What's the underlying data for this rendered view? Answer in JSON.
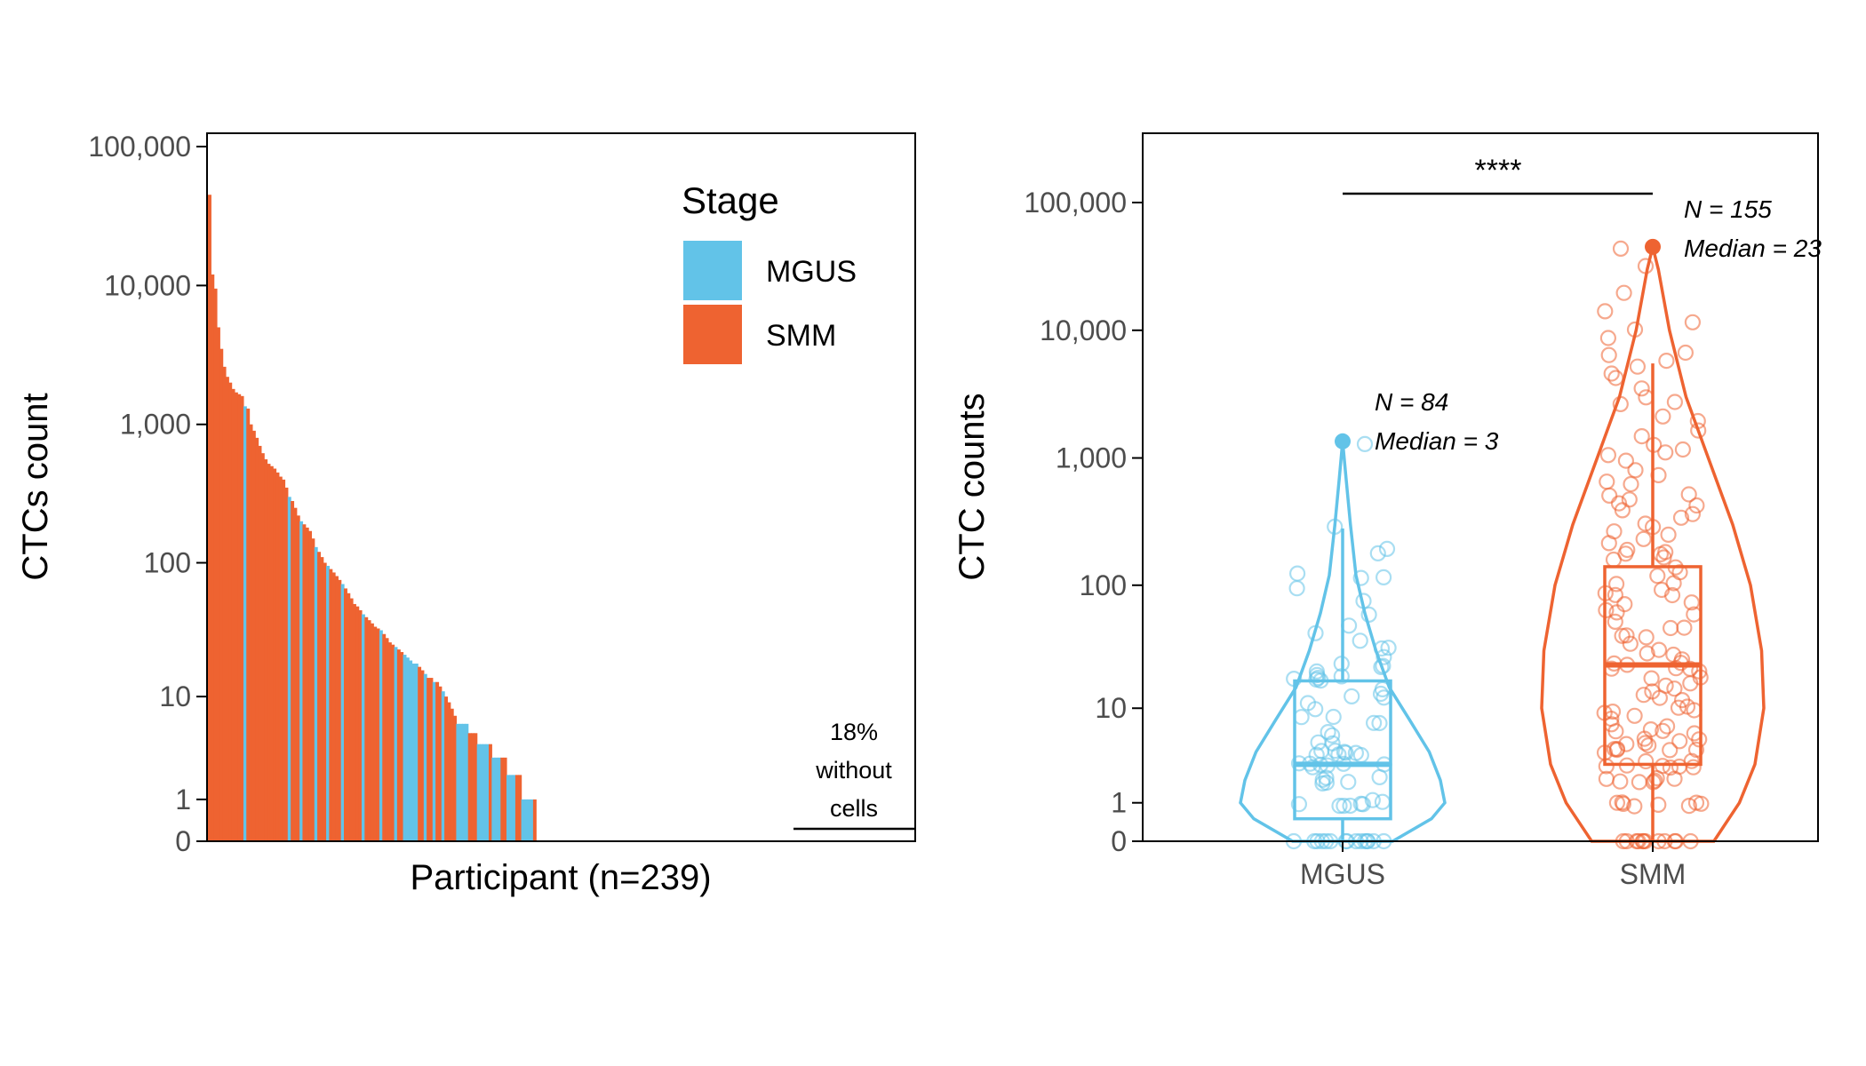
{
  "colors": {
    "mgus": "#62c3e8",
    "smm": "#ee6331",
    "axis": "#000000",
    "tick_text": "#4d4d4d"
  },
  "chart_data": [
    {
      "type": "bar",
      "subtype": "ranked-waterfall",
      "xlabel": "Participant (n=239)",
      "ylabel": "CTCs count",
      "y_scale": "log(y+1)",
      "yticks": [
        0,
        1,
        10,
        100,
        1000,
        10000,
        100000
      ],
      "ytick_labels": [
        "0",
        "1",
        "10",
        "100",
        "1,000",
        "10,000",
        "100,000"
      ],
      "ylim": [
        0,
        100000
      ],
      "n_participants": 239,
      "legend": {
        "title": "Stage",
        "position": "top-right",
        "entries": [
          "MGUS",
          "SMM"
        ]
      },
      "annotation": {
        "lines": [
          "18%",
          "without",
          "cells"
        ]
      },
      "bars": [
        {
          "stage": "SMM",
          "value": 45000
        },
        {
          "stage": "SMM",
          "value": 12000
        },
        {
          "stage": "SMM",
          "value": 9500
        },
        {
          "stage": "SMM",
          "value": 5000
        },
        {
          "stage": "SMM",
          "value": 3500
        },
        {
          "stage": "SMM",
          "value": 2600
        },
        {
          "stage": "SMM",
          "value": 2200
        },
        {
          "stage": "SMM",
          "value": 2000
        },
        {
          "stage": "SMM",
          "value": 1800
        },
        {
          "stage": "SMM",
          "value": 1700
        },
        {
          "stage": "SMM",
          "value": 1650
        },
        {
          "stage": "SMM",
          "value": 1600
        },
        {
          "stage": "MGUS",
          "value": 1350
        },
        {
          "stage": "SMM",
          "value": 1300
        },
        {
          "stage": "SMM",
          "value": 1000
        },
        {
          "stage": "SMM",
          "value": 900
        },
        {
          "stage": "SMM",
          "value": 800
        },
        {
          "stage": "SMM",
          "value": 700
        },
        {
          "stage": "SMM",
          "value": 620
        },
        {
          "stage": "SMM",
          "value": 560
        },
        {
          "stage": "SMM",
          "value": 520
        },
        {
          "stage": "SMM",
          "value": 500
        },
        {
          "stage": "SMM",
          "value": 480
        },
        {
          "stage": "SMM",
          "value": 450
        },
        {
          "stage": "SMM",
          "value": 420
        },
        {
          "stage": "SMM",
          "value": 400
        },
        {
          "stage": "SMM",
          "value": 350
        },
        {
          "stage": "MGUS",
          "value": 300
        },
        {
          "stage": "SMM",
          "value": 280
        },
        {
          "stage": "SMM",
          "value": 250
        },
        {
          "stage": "SMM",
          "value": 220
        },
        {
          "stage": "MGUS",
          "value": 200
        },
        {
          "stage": "SMM",
          "value": 190
        },
        {
          "stage": "SMM",
          "value": 180
        },
        {
          "stage": "SMM",
          "value": 170
        },
        {
          "stage": "SMM",
          "value": 150
        },
        {
          "stage": "MGUS",
          "value": 130
        },
        {
          "stage": "SMM",
          "value": 120
        },
        {
          "stage": "SMM",
          "value": 110
        },
        {
          "stage": "SMM",
          "value": 100
        },
        {
          "stage": "MGUS",
          "value": 95
        },
        {
          "stage": "SMM",
          "value": 90
        },
        {
          "stage": "SMM",
          "value": 85
        },
        {
          "stage": "SMM",
          "value": 80
        },
        {
          "stage": "SMM",
          "value": 75
        },
        {
          "stage": "MGUS",
          "value": 70
        },
        {
          "stage": "SMM",
          "value": 65
        },
        {
          "stage": "SMM",
          "value": 60
        },
        {
          "stage": "SMM",
          "value": 55
        },
        {
          "stage": "SMM",
          "value": 50
        },
        {
          "stage": "SMM",
          "value": 48
        },
        {
          "stage": "SMM",
          "value": 45
        },
        {
          "stage": "MGUS",
          "value": 42
        },
        {
          "stage": "SMM",
          "value": 40
        },
        {
          "stage": "SMM",
          "value": 38
        },
        {
          "stage": "SMM",
          "value": 36
        },
        {
          "stage": "SMM",
          "value": 34
        },
        {
          "stage": "SMM",
          "value": 33
        },
        {
          "stage": "MGUS",
          "value": 32
        },
        {
          "stage": "SMM",
          "value": 30
        },
        {
          "stage": "SMM",
          "value": 28
        },
        {
          "stage": "SMM",
          "value": 26
        },
        {
          "stage": "SMM",
          "value": 25
        },
        {
          "stage": "MGUS",
          "value": 24
        },
        {
          "stage": "SMM",
          "value": 23
        },
        {
          "stage": "SMM",
          "value": 22
        },
        {
          "stage": "MGUS",
          "value": 21
        },
        {
          "stage": "MGUS",
          "value": 20
        },
        {
          "stage": "MGUS",
          "value": 19
        },
        {
          "stage": "MGUS",
          "value": 18
        },
        {
          "stage": "MGUS",
          "value": 18
        },
        {
          "stage": "SMM",
          "value": 17
        },
        {
          "stage": "SMM",
          "value": 16
        },
        {
          "stage": "MGUS",
          "value": 15
        },
        {
          "stage": "SMM",
          "value": 14
        },
        {
          "stage": "SMM",
          "value": 14
        },
        {
          "stage": "MGUS",
          "value": 13
        },
        {
          "stage": "SMM",
          "value": 13
        },
        {
          "stage": "SMM",
          "value": 12
        },
        {
          "stage": "MGUS",
          "value": 11
        },
        {
          "stage": "SMM",
          "value": 10
        },
        {
          "stage": "SMM",
          "value": 9
        },
        {
          "stage": "SMM",
          "value": 8
        },
        {
          "stage": "SMM",
          "value": 7
        },
        {
          "stage": "MGUS",
          "value": 6
        },
        {
          "stage": "MGUS",
          "value": 6
        },
        {
          "stage": "MGUS",
          "value": 6
        },
        {
          "stage": "MGUS",
          "value": 6
        },
        {
          "stage": "SMM",
          "value": 5
        },
        {
          "stage": "SMM",
          "value": 5
        },
        {
          "stage": "SMM",
          "value": 5
        },
        {
          "stage": "MGUS",
          "value": 4
        },
        {
          "stage": "MGUS",
          "value": 4
        },
        {
          "stage": "MGUS",
          "value": 4
        },
        {
          "stage": "MGUS",
          "value": 4
        },
        {
          "stage": "SMM",
          "value": 4
        },
        {
          "stage": "MGUS",
          "value": 3
        },
        {
          "stage": "MGUS",
          "value": 3
        },
        {
          "stage": "MGUS",
          "value": 3
        },
        {
          "stage": "SMM",
          "value": 3
        },
        {
          "stage": "SMM",
          "value": 3
        },
        {
          "stage": "MGUS",
          "value": 2
        },
        {
          "stage": "MGUS",
          "value": 2
        },
        {
          "stage": "MGUS",
          "value": 2
        },
        {
          "stage": "SMM",
          "value": 2
        },
        {
          "stage": "SMM",
          "value": 2
        },
        {
          "stage": "MGUS",
          "value": 1
        },
        {
          "stage": "MGUS",
          "value": 1
        },
        {
          "stage": "MGUS",
          "value": 1
        },
        {
          "stage": "MGUS",
          "value": 1
        },
        {
          "stage": "SMM",
          "value": 1
        }
      ]
    },
    {
      "type": "violin-box",
      "xlabel": "",
      "ylabel": "CTC counts",
      "y_scale": "log(y+1)",
      "yticks": [
        0,
        1,
        10,
        100,
        1000,
        10000,
        100000
      ],
      "ytick_labels": [
        "0",
        "1",
        "10",
        "100",
        "1,000",
        "10,000",
        "100,000"
      ],
      "ylim": [
        0,
        300000
      ],
      "categories": [
        "MGUS",
        "SMM"
      ],
      "significance": "****",
      "groups": [
        {
          "name": "MGUS",
          "n_label": "N = 84",
          "median_label": "Median = 3",
          "n": 84,
          "median": 3,
          "q1": 0.5,
          "q3": 17,
          "whisker_low": 0,
          "whisker_high": 280,
          "max": 1350,
          "violin": [
            [
              0,
              0.45
            ],
            [
              0.5,
              0.8
            ],
            [
              1,
              0.92
            ],
            [
              2,
              0.88
            ],
            [
              4,
              0.78
            ],
            [
              8,
              0.6
            ],
            [
              15,
              0.42
            ],
            [
              30,
              0.3
            ],
            [
              60,
              0.2
            ],
            [
              120,
              0.12
            ],
            [
              300,
              0.07
            ],
            [
              700,
              0.03
            ],
            [
              1350,
              0
            ]
          ],
          "points": [
            0,
            0,
            0,
            0,
            0,
            0,
            0,
            0,
            0,
            0,
            0,
            0,
            0,
            0,
            0,
            1,
            1,
            1,
            1,
            1,
            1,
            1,
            1,
            2,
            2,
            2,
            2,
            2,
            2,
            3,
            3,
            3,
            3,
            3,
            3,
            3,
            4,
            4,
            4,
            4,
            4,
            4,
            4,
            4,
            5,
            5,
            6,
            6,
            7,
            7,
            8,
            9,
            10,
            11,
            12,
            13,
            14,
            15,
            16,
            17,
            18,
            18,
            19,
            20,
            20,
            21,
            22,
            23,
            25,
            30,
            32,
            35,
            40,
            45,
            60,
            75,
            90,
            110,
            120,
            130,
            190,
            200,
            280,
            1350
          ]
        },
        {
          "name": "SMM",
          "n_label": "N = 155",
          "median_label": "Median = 23",
          "n": 155,
          "median": 23,
          "q1": 3,
          "q3": 140,
          "whisker_low": 0,
          "whisker_high": 5500,
          "max": 45000,
          "violin": [
            [
              0,
              0.55
            ],
            [
              1,
              0.78
            ],
            [
              3,
              0.92
            ],
            [
              10,
              1.0
            ],
            [
              30,
              0.98
            ],
            [
              100,
              0.88
            ],
            [
              300,
              0.72
            ],
            [
              1000,
              0.5
            ],
            [
              3000,
              0.3
            ],
            [
              10000,
              0.15
            ],
            [
              30000,
              0.05
            ],
            [
              45000,
              0
            ]
          ],
          "points": [
            0,
            0,
            0,
            0,
            0,
            0,
            0,
            0,
            0,
            0,
            0,
            0,
            1,
            1,
            1,
            1,
            1,
            1,
            1,
            1,
            2,
            2,
            2,
            2,
            2,
            2,
            2,
            3,
            3,
            3,
            3,
            3,
            3,
            3,
            3,
            4,
            4,
            4,
            4,
            4,
            4,
            5,
            5,
            5,
            5,
            5,
            5,
            6,
            6,
            6,
            7,
            7,
            7,
            8,
            8,
            9,
            9,
            10,
            10,
            11,
            12,
            12,
            13,
            14,
            15,
            16,
            17,
            18,
            19,
            20,
            21,
            22,
            23,
            23,
            24,
            25,
            26,
            28,
            30,
            32,
            35,
            38,
            40,
            42,
            45,
            48,
            50,
            55,
            60,
            65,
            70,
            75,
            80,
            85,
            90,
            95,
            100,
            110,
            120,
            130,
            140,
            150,
            160,
            170,
            180,
            190,
            200,
            220,
            240,
            260,
            280,
            300,
            320,
            350,
            380,
            400,
            420,
            450,
            480,
            500,
            550,
            600,
            650,
            700,
            800,
            900,
            1000,
            1100,
            1200,
            1300,
            1500,
            1700,
            2000,
            2200,
            2500,
            2800,
            3000,
            3500,
            4000,
            4500,
            5000,
            5500,
            6000,
            7000,
            9000,
            10000,
            12000,
            15000,
            20000,
            30000,
            45000
          ]
        }
      ]
    }
  ]
}
